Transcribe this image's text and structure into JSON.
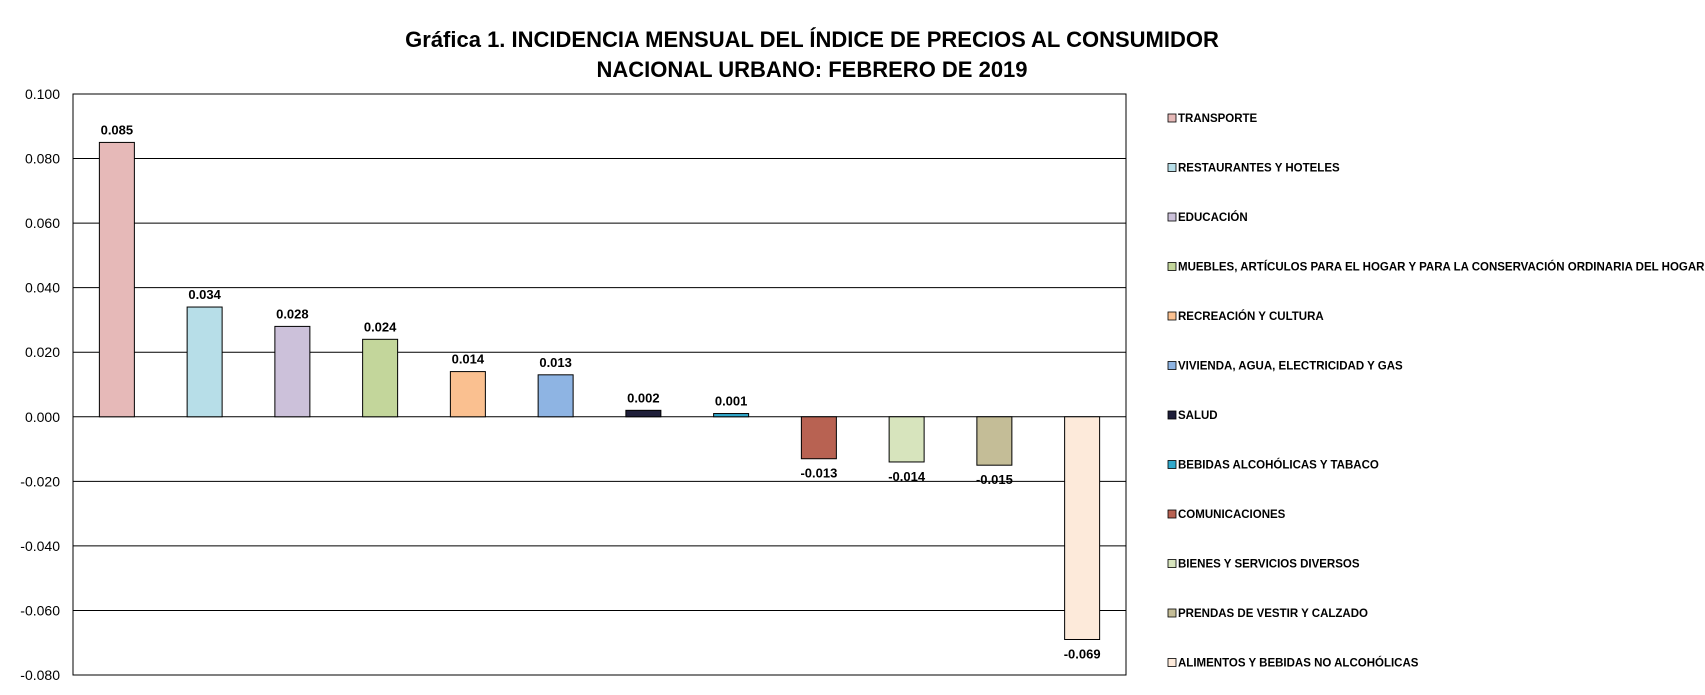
{
  "chart_data": {
    "type": "bar",
    "title_line1": "Gráfica 1.  INCIDENCIA MENSUAL  DEL ÍNDICE DE PRECIOS AL CONSUMIDOR",
    "title_line2": "NACIONAL URBANO: FEBRERO DE 2019",
    "xlabel": "",
    "ylabel": "",
    "ylim": [
      -0.08,
      0.1
    ],
    "yticks": [
      0.1,
      0.08,
      0.06,
      0.04,
      0.02,
      0.0,
      -0.02,
      -0.04,
      -0.06,
      -0.08
    ],
    "ytick_labels": [
      "0.100",
      "0.080",
      "0.060",
      "0.040",
      "0.020",
      "0.000",
      "-0.020",
      "-0.040",
      "-0.060",
      "-0.080"
    ],
    "grid": true,
    "legend_position": "right",
    "categories": [
      "TRANSPORTE",
      "RESTAURANTES Y HOTELES",
      "EDUCACIÓN",
      "MUEBLES, ARTÍCULOS PARA EL HOGAR Y PARA LA CONSERVACIÓN ORDINARIA DEL HOGAR",
      "RECREACIÓN Y CULTURA",
      "VIVIENDA, AGUA, ELECTRICIDAD Y GAS",
      "SALUD",
      "BEBIDAS ALCOHÓLICAS Y TABACO",
      "COMUNICACIONES",
      "BIENES Y SERVICIOS DIVERSOS",
      "PRENDAS DE VESTIR Y CALZADO",
      "ALIMENTOS Y BEBIDAS NO ALCOHÓLICAS"
    ],
    "values": [
      0.085,
      0.034,
      0.028,
      0.024,
      0.014,
      0.013,
      0.002,
      0.001,
      -0.013,
      -0.014,
      -0.015,
      -0.069
    ],
    "value_labels": [
      "0.085",
      "0.034",
      "0.028",
      "0.024",
      "0.014",
      "0.013",
      "0.002",
      "0.001",
      "-0.013",
      "-0.014",
      "-0.015",
      "-0.069"
    ],
    "colors": [
      "#E6B9B8",
      "#B7DEE8",
      "#CCC1DA",
      "#C3D69B",
      "#FAC090",
      "#8EB4E3",
      "#1F1F3A",
      "#31A9CC",
      "#B86252",
      "#D7E4BD",
      "#C4BD97",
      "#FDEADA"
    ]
  }
}
